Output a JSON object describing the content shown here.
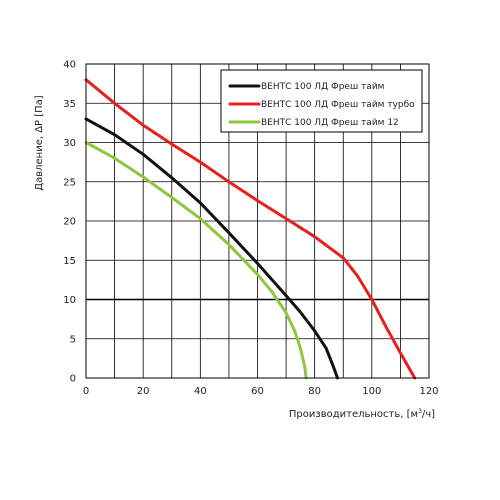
{
  "chart_data": {
    "type": "line",
    "title": "",
    "xlabel": "Производительность, [м",
    "xlabel_sup": "3",
    "xlabel_end": "/ч]",
    "ylabel": "Давление, ΔР [Па]",
    "xlim": [
      0,
      120
    ],
    "ylim": [
      0,
      40
    ],
    "xticks": [
      0,
      20,
      40,
      60,
      80,
      100,
      120
    ],
    "yticks": [
      0,
      5,
      10,
      15,
      20,
      25,
      30,
      35,
      40
    ],
    "x_minor_step": 10,
    "grid": true,
    "reference_line_y": 10,
    "legend_position": "top-right",
    "series": [
      {
        "name": "ВЕНТС 100 ЛД Фреш тайм",
        "color": "#111111",
        "points": [
          [
            0,
            33
          ],
          [
            10,
            31
          ],
          [
            20,
            28.5
          ],
          [
            30,
            25.5
          ],
          [
            40,
            22.3
          ],
          [
            50,
            18.5
          ],
          [
            60,
            14.6
          ],
          [
            70,
            10.5
          ],
          [
            75,
            8.4
          ],
          [
            80,
            6
          ],
          [
            84,
            3.8
          ],
          [
            86.5,
            1.5
          ],
          [
            88,
            0
          ]
        ]
      },
      {
        "name": "ВЕНТС 100 ЛД Фреш тайм турбо",
        "color": "#e5201f",
        "points": [
          [
            0,
            38
          ],
          [
            10,
            35
          ],
          [
            20,
            32.2
          ],
          [
            30,
            29.8
          ],
          [
            40,
            27.5
          ],
          [
            50,
            25
          ],
          [
            60,
            22.6
          ],
          [
            70,
            20.3
          ],
          [
            80,
            18
          ],
          [
            90,
            15.3
          ],
          [
            95,
            13
          ],
          [
            100,
            10
          ],
          [
            105,
            6.5
          ],
          [
            110,
            3.2
          ],
          [
            115,
            0
          ]
        ]
      },
      {
        "name": "ВЕНТС 100 ЛД Фреш тайм 12",
        "color": "#8dc63f",
        "points": [
          [
            0,
            30
          ],
          [
            10,
            28
          ],
          [
            20,
            25.6
          ],
          [
            30,
            23
          ],
          [
            40,
            20.3
          ],
          [
            50,
            17
          ],
          [
            60,
            13.2
          ],
          [
            65,
            11
          ],
          [
            70,
            8.3
          ],
          [
            73,
            6
          ],
          [
            75,
            3.8
          ],
          [
            76.5,
            1.5
          ],
          [
            77,
            0
          ]
        ]
      }
    ]
  }
}
